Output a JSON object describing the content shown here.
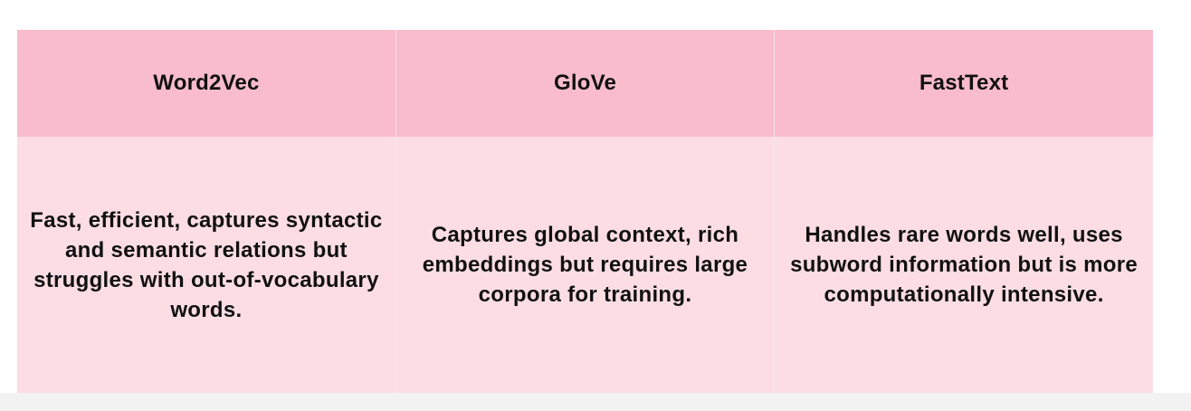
{
  "table": {
    "headers": [
      "Word2Vec",
      "GloVe",
      "FastText"
    ],
    "descriptions": [
      "Fast, efficient, captures syntactic and semantic relations but struggles with out-of-vocabulary words.",
      "Captures global context, rich embeddings but requires large corpora for training.",
      "Handles rare words well, uses subword information but is more computationally intensive."
    ]
  },
  "colors": {
    "header_bg": "#f9bccc",
    "body_bg": "#fcdde4",
    "text": "#111111"
  }
}
